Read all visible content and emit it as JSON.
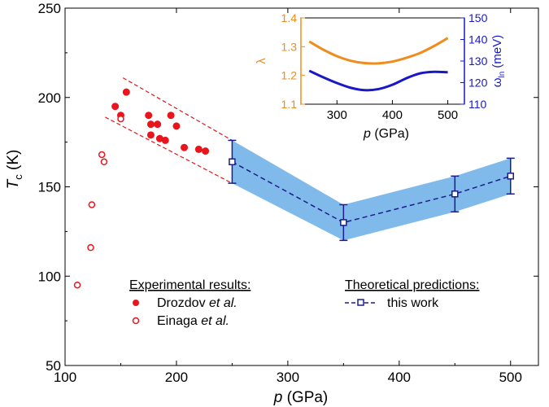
{
  "chart_data": [
    {
      "type": "scatter",
      "xlabel": "p (GPa)",
      "ylabel": "T_c (K)",
      "xlim": [
        100,
        525
      ],
      "ylim": [
        50,
        250
      ],
      "xticks": [
        100,
        200,
        300,
        400,
        500
      ],
      "yticks": [
        50,
        100,
        150,
        200,
        250
      ],
      "xtick_labels": [
        "100",
        "200",
        "300",
        "400",
        "500"
      ],
      "ytick_labels": [
        "50",
        "100",
        "150",
        "200",
        "250"
      ],
      "ylabel_parts": {
        "italic": "T",
        "sub": "c",
        "unit": " (K)"
      },
      "xlabel_parts": {
        "italic": "p",
        "unit": " (GPa)"
      },
      "legend": {
        "experimental_title": "Experimental results:",
        "theoretical_title": "Theoretical predictions:",
        "drozdov_label": "Drozdov ",
        "einaga_label": "Einaga ",
        "etal": "et al.",
        "this_work_label": "this work"
      },
      "colors": {
        "experiment": "#e8161c",
        "theory": "#1c1c8c",
        "band": "#6aaee6"
      },
      "series": [
        {
          "name": "Drozdov et al.",
          "marker": "filled-circle",
          "points": [
            [
              145,
              195
            ],
            [
              150,
              190
            ],
            [
              155,
              203
            ],
            [
              175,
              190
            ],
            [
              177,
              185
            ],
            [
              177,
              179
            ],
            [
              183,
              185
            ],
            [
              185,
              177
            ],
            [
              190,
              176
            ],
            [
              195,
              190
            ],
            [
              200,
              184
            ],
            [
              207,
              172
            ],
            [
              220,
              171
            ],
            [
              226,
              170
            ]
          ]
        },
        {
          "name": "Einaga et al.",
          "marker": "open-circle",
          "points": [
            [
              111,
              95
            ],
            [
              123,
              116
            ],
            [
              124,
              140
            ],
            [
              133,
              168
            ],
            [
              135,
              164
            ],
            [
              150,
              188
            ]
          ]
        },
        {
          "name": "this work",
          "marker": "open-square-dashed-line",
          "points": [
            [
              250,
              164
            ],
            [
              350,
              130
            ],
            [
              450,
              146
            ],
            [
              500,
              156
            ]
          ],
          "error_bars": [
            12,
            10,
            10,
            10
          ]
        }
      ],
      "guide_lines": [
        {
          "x": [
            152,
            250
          ],
          "y": [
            211,
            176
          ]
        },
        {
          "x": [
            136,
            250
          ],
          "y": [
            189,
            152
          ]
        }
      ]
    },
    {
      "type": "line",
      "inset": true,
      "xlabel": "p (GPa)",
      "xlabel_parts": {
        "italic": "p",
        "unit": " (GPa)"
      },
      "xlim": [
        235,
        530
      ],
      "xticks": [
        300,
        400,
        500
      ],
      "xtick_labels": [
        "300",
        "400",
        "500"
      ],
      "y_left": {
        "label": "λ",
        "lim": [
          1.1,
          1.4
        ],
        "ticks": [
          1.1,
          1.2,
          1.3,
          1.4
        ],
        "tick_labels": [
          "1.1",
          "1.2",
          "1.3",
          "1.4"
        ],
        "color": "#f08c1e"
      },
      "y_right": {
        "label": "ωln (meV)",
        "label_parts": {
          "main": "ω",
          "sub": "ln",
          "unit": " (meV)"
        },
        "lim": [
          110,
          150
        ],
        "ticks": [
          110,
          120,
          130,
          140,
          150
        ],
        "tick_labels": [
          "110",
          "120",
          "130",
          "140",
          "150"
        ],
        "color": "#1818c8"
      },
      "series": [
        {
          "name": "λ",
          "axis": "left",
          "x": [
            250,
            275,
            300,
            325,
            350,
            375,
            400,
            425,
            450,
            475,
            500
          ],
          "values": [
            1.318,
            1.29,
            1.267,
            1.251,
            1.243,
            1.242,
            1.248,
            1.261,
            1.278,
            1.302,
            1.33
          ]
        },
        {
          "name": "ωln",
          "axis": "right",
          "x": [
            250,
            275,
            300,
            325,
            350,
            375,
            400,
            425,
            450,
            475,
            500
          ],
          "values": [
            125.5,
            122.5,
            119.8,
            117.6,
            116.5,
            117.0,
            119.0,
            122.0,
            124.3,
            125.0,
            124.8
          ]
        }
      ]
    }
  ]
}
